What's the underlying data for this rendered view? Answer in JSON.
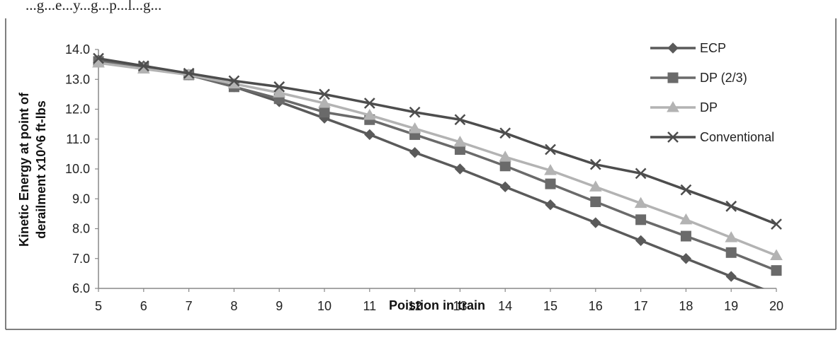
{
  "header_text": "...g...e...y...g...p...l...g...",
  "chart_data": {
    "type": "line",
    "title": "",
    "xlabel": "Poistion in train",
    "ylabel": "Kinetic Energy at point of derailment  x10^6 ft-lbs",
    "ylabel_lines": [
      "Kinetic Energy at point of",
      "derailment  x10^6 ft-lbs"
    ],
    "x": [
      5,
      6,
      7,
      8,
      9,
      10,
      11,
      12,
      13,
      14,
      15,
      16,
      17,
      18,
      19,
      20
    ],
    "xlim": [
      5,
      20
    ],
    "ylim": [
      6.0,
      14.0
    ],
    "y_ticks": [
      "6.0",
      "7.0",
      "8.0",
      "9.0",
      "10.0",
      "11.0",
      "12.0",
      "13.0",
      "14.0"
    ],
    "x_ticks": [
      "5",
      "6",
      "7",
      "8",
      "9",
      "10",
      "11",
      "12",
      "13",
      "14",
      "15",
      "16",
      "17",
      "18",
      "19",
      "20"
    ],
    "grid": false,
    "legend_position": "right",
    "series": [
      {
        "name": "ECP",
        "marker": "diamond",
        "color": "#5a5a5a",
        "values": [
          13.65,
          13.45,
          13.15,
          12.75,
          12.25,
          11.7,
          11.15,
          10.55,
          10.0,
          9.4,
          8.8,
          8.2,
          7.6,
          7.0,
          6.4,
          5.8
        ]
      },
      {
        "name": "DP (2/3)",
        "marker": "square",
        "color": "#6a6a6a",
        "values": [
          13.6,
          13.4,
          13.15,
          12.75,
          12.35,
          11.9,
          11.65,
          11.15,
          10.65,
          10.1,
          9.5,
          8.9,
          8.3,
          7.75,
          7.2,
          6.6
        ]
      },
      {
        "name": "DP",
        "marker": "triangle",
        "color": "#b3b3b3",
        "values": [
          13.55,
          13.35,
          13.15,
          12.85,
          12.55,
          12.2,
          11.8,
          11.35,
          10.9,
          10.4,
          9.95,
          9.4,
          8.85,
          8.3,
          7.7,
          7.1
        ]
      },
      {
        "name": "Conventional",
        "marker": "x",
        "color": "#4d4d4d",
        "values": [
          13.7,
          13.45,
          13.2,
          12.95,
          12.75,
          12.5,
          12.2,
          11.9,
          11.65,
          11.2,
          10.65,
          10.15,
          9.85,
          9.3,
          8.75,
          8.15
        ]
      }
    ]
  }
}
